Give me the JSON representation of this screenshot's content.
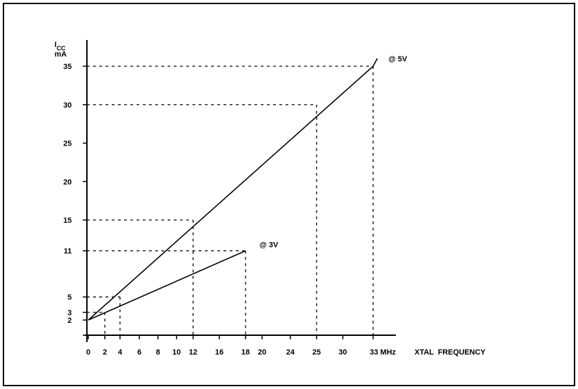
{
  "chart_data": {
    "type": "line",
    "title": "",
    "ylabel_main": "I",
    "ylabel_sub": "CC",
    "ylabel_unit": "mA",
    "xlabel": "XTAL  FREQUENCY",
    "x_ticks": [
      {
        "value": 0,
        "label": "0"
      },
      {
        "value": 2,
        "label": "2"
      },
      {
        "value": 4,
        "label": "4"
      },
      {
        "value": 6,
        "label": "6"
      },
      {
        "value": 8,
        "label": "8"
      },
      {
        "value": 10,
        "label": "10"
      },
      {
        "value": 12,
        "label": "12"
      },
      {
        "value": 16,
        "label": "16"
      },
      {
        "value": 18,
        "label": "18"
      },
      {
        "value": 20,
        "label": "20"
      },
      {
        "value": 24,
        "label": "24"
      },
      {
        "value": 25,
        "label": "25"
      },
      {
        "value": 30,
        "label": "30"
      },
      {
        "value": 33,
        "label": "33 MHz"
      }
    ],
    "y_ticks": [
      {
        "value": 2,
        "label": "2"
      },
      {
        "value": 3,
        "label": "3"
      },
      {
        "value": 5,
        "label": "5"
      },
      {
        "value": 11,
        "label": "11"
      },
      {
        "value": 15,
        "label": "15"
      },
      {
        "value": 20,
        "label": "20"
      },
      {
        "value": 25,
        "label": "25"
      },
      {
        "value": 30,
        "label": "30"
      },
      {
        "value": 35,
        "label": "35"
      }
    ],
    "series": [
      {
        "name": "@ 5V",
        "x": [
          0,
          33
        ],
        "y": [
          2,
          35
        ],
        "x_end": 33.5,
        "y_end": 36
      },
      {
        "name": "@ 3V",
        "x": [
          0,
          18
        ],
        "y": [
          2,
          11
        ]
      }
    ],
    "reference_points": [
      {
        "x": 2,
        "y": 3
      },
      {
        "x": 4,
        "y": 5
      },
      {
        "x": 12,
        "y": 15
      },
      {
        "x": 18,
        "y": 11
      },
      {
        "x": 25,
        "y": 30
      },
      {
        "x": 33,
        "y": 35
      }
    ],
    "grid": false
  }
}
